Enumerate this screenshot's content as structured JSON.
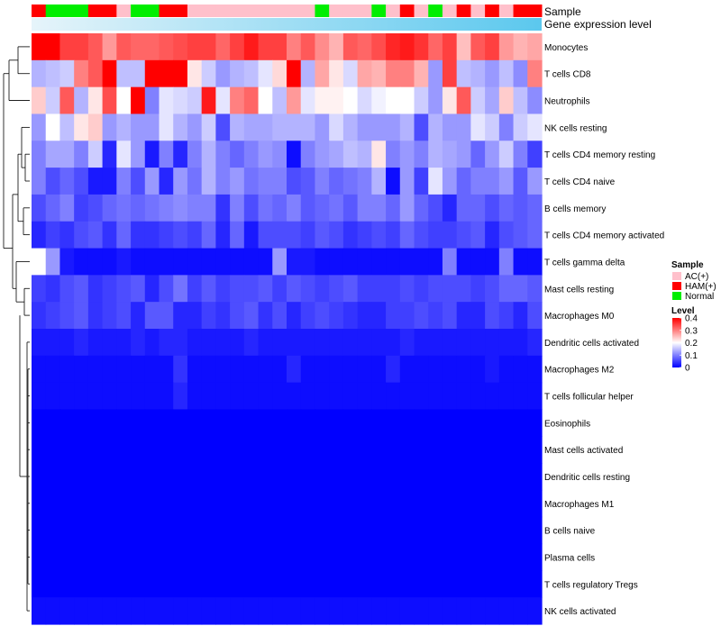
{
  "chart_data": {
    "type": "heatmap",
    "annotation_labels": [
      "Sample",
      "Gene expression level"
    ],
    "sample_groups": [
      "HAM(+)",
      "Normal",
      "Normal",
      "Normal",
      "HAM(+)",
      "HAM(+)",
      "AC(+)",
      "Normal",
      "Normal",
      "HAM(+)",
      "HAM(+)",
      "AC(+)",
      "AC(+)",
      "AC(+)",
      "AC(+)",
      "AC(+)",
      "AC(+)",
      "AC(+)",
      "AC(+)",
      "AC(+)",
      "Normal",
      "AC(+)",
      "AC(+)",
      "AC(+)",
      "Normal",
      "AC(+)",
      "HAM(+)",
      "AC(+)",
      "Normal",
      "AC(+)",
      "HAM(+)",
      "AC(+)",
      "HAM(+)",
      "AC(+)",
      "HAM(+)",
      "HAM(+)"
    ],
    "rows": [
      "Monocytes",
      "T cells CD8",
      "Neutrophils",
      "NK cells resting",
      "T cells CD4 memory resting",
      "T cells CD4 naive",
      "B cells memory",
      "T cells CD4 memory activated",
      "T cells gamma delta",
      "Mast cells resting",
      "Macrophages M0",
      "Dendritic cells activated",
      "Macrophages M2",
      "T cells follicular helper",
      "Eosinophils",
      "Mast cells activated",
      "Dendritic cells resting",
      "Macrophages M1",
      "B cells naive",
      "Plasma cells",
      "T cells regulatory  Tregs",
      "NK cells activated"
    ],
    "value_range": [
      0,
      0.4
    ],
    "values": [
      [
        0.42,
        0.4,
        0.35,
        0.35,
        0.33,
        0.28,
        0.33,
        0.32,
        0.32,
        0.33,
        0.34,
        0.35,
        0.35,
        0.32,
        0.35,
        0.38,
        0.35,
        0.35,
        0.3,
        0.33,
        0.29,
        0.26,
        0.33,
        0.32,
        0.34,
        0.37,
        0.38,
        0.36,
        0.32,
        0.35,
        0.25,
        0.33,
        0.35,
        0.28,
        0.26,
        0.27
      ],
      [
        0.14,
        0.15,
        0.16,
        0.3,
        0.33,
        0.4,
        0.15,
        0.15,
        0.4,
        0.4,
        0.4,
        0.22,
        0.16,
        0.12,
        0.14,
        0.15,
        0.18,
        0.23,
        0.4,
        0.14,
        0.27,
        0.22,
        0.17,
        0.27,
        0.26,
        0.3,
        0.3,
        0.26,
        0.12,
        0.35,
        0.15,
        0.14,
        0.12,
        0.15,
        0.11,
        0.3
      ],
      [
        0.24,
        0.16,
        0.33,
        0.14,
        0.22,
        0.34,
        0.2,
        0.4,
        0.1,
        0.18,
        0.17,
        0.16,
        0.38,
        0.18,
        0.3,
        0.32,
        0.2,
        0.15,
        0.28,
        0.18,
        0.21,
        0.21,
        0.2,
        0.17,
        0.19,
        0.2,
        0.2,
        0.16,
        0.12,
        0.22,
        0.33,
        0.16,
        0.13,
        0.24,
        0.15,
        0.11
      ],
      [
        0.12,
        0.2,
        0.15,
        0.22,
        0.24,
        0.12,
        0.14,
        0.12,
        0.12,
        0.18,
        0.14,
        0.12,
        0.16,
        0.06,
        0.14,
        0.13,
        0.13,
        0.14,
        0.14,
        0.14,
        0.12,
        0.17,
        0.14,
        0.12,
        0.12,
        0.12,
        0.14,
        0.06,
        0.14,
        0.12,
        0.12,
        0.18,
        0.16,
        0.1,
        0.16,
        0.18
      ],
      [
        0.1,
        0.13,
        0.13,
        0.1,
        0.16,
        0.03,
        0.18,
        0.12,
        0.02,
        0.1,
        0.03,
        0.1,
        0.14,
        0.1,
        0.08,
        0.1,
        0.12,
        0.11,
        0.01,
        0.1,
        0.12,
        0.13,
        0.15,
        0.14,
        0.22,
        0.1,
        0.12,
        0.1,
        0.14,
        0.13,
        0.12,
        0.08,
        0.12,
        0.16,
        0.1,
        0.05
      ],
      [
        0.1,
        0.06,
        0.08,
        0.06,
        0.02,
        0.02,
        0.1,
        0.06,
        0.12,
        0.03,
        0.12,
        0.09,
        0.14,
        0.1,
        0.12,
        0.09,
        0.1,
        0.1,
        0.06,
        0.07,
        0.1,
        0.08,
        0.09,
        0.1,
        0.14,
        0.01,
        0.12,
        0.05,
        0.18,
        0.12,
        0.08,
        0.1,
        0.1,
        0.12,
        0.07,
        0.12
      ],
      [
        0.06,
        0.08,
        0.1,
        0.05,
        0.06,
        0.08,
        0.09,
        0.08,
        0.09,
        0.1,
        0.11,
        0.1,
        0.1,
        0.04,
        0.1,
        0.06,
        0.09,
        0.08,
        0.1,
        0.07,
        0.08,
        0.09,
        0.07,
        0.1,
        0.1,
        0.08,
        0.12,
        0.08,
        0.06,
        0.03,
        0.08,
        0.08,
        0.06,
        0.08,
        0.07,
        0.08
      ],
      [
        0.03,
        0.05,
        0.04,
        0.06,
        0.07,
        0.04,
        0.08,
        0.04,
        0.04,
        0.05,
        0.06,
        0.05,
        0.08,
        0.03,
        0.08,
        0.02,
        0.06,
        0.06,
        0.06,
        0.05,
        0.07,
        0.06,
        0.04,
        0.05,
        0.06,
        0.05,
        0.08,
        0.06,
        0.05,
        0.05,
        0.06,
        0.07,
        0.03,
        0.06,
        0.07,
        0.08
      ],
      [
        0.2,
        0.12,
        0.02,
        0.01,
        0.01,
        0.01,
        0.02,
        0.01,
        0.01,
        0.01,
        0.01,
        0.01,
        0.01,
        0.01,
        0.01,
        0.01,
        0.01,
        0.12,
        0.02,
        0.02,
        0.01,
        0.01,
        0.01,
        0.01,
        0.01,
        0.01,
        0.01,
        0.01,
        0.01,
        0.1,
        0.01,
        0.01,
        0.01,
        0.1,
        0.01,
        0.01
      ],
      [
        0.05,
        0.04,
        0.06,
        0.07,
        0.04,
        0.05,
        0.06,
        0.07,
        0.03,
        0.06,
        0.09,
        0.05,
        0.07,
        0.05,
        0.06,
        0.06,
        0.07,
        0.05,
        0.07,
        0.06,
        0.05,
        0.06,
        0.07,
        0.05,
        0.05,
        0.05,
        0.06,
        0.05,
        0.06,
        0.06,
        0.06,
        0.05,
        0.06,
        0.08,
        0.08,
        0.07
      ],
      [
        0.04,
        0.05,
        0.06,
        0.07,
        0.04,
        0.05,
        0.06,
        0.03,
        0.07,
        0.07,
        0.03,
        0.03,
        0.05,
        0.04,
        0.06,
        0.07,
        0.04,
        0.06,
        0.03,
        0.05,
        0.06,
        0.05,
        0.04,
        0.03,
        0.03,
        0.05,
        0.05,
        0.06,
        0.05,
        0.06,
        0.03,
        0.03,
        0.06,
        0.05,
        0.03,
        0.06
      ],
      [
        0.02,
        0.02,
        0.02,
        0.03,
        0.02,
        0.02,
        0.02,
        0.03,
        0.02,
        0.03,
        0.03,
        0.02,
        0.02,
        0.02,
        0.02,
        0.03,
        0.02,
        0.02,
        0.02,
        0.02,
        0.02,
        0.02,
        0.02,
        0.02,
        0.02,
        0.02,
        0.03,
        0.02,
        0.02,
        0.02,
        0.02,
        0.02,
        0.02,
        0.02,
        0.02,
        0.03
      ],
      [
        0.01,
        0.01,
        0.01,
        0.01,
        0.01,
        0.01,
        0.01,
        0.01,
        0.01,
        0.01,
        0.04,
        0.01,
        0.01,
        0.01,
        0.01,
        0.01,
        0.01,
        0.01,
        0.03,
        0.01,
        0.01,
        0.01,
        0.01,
        0.01,
        0.01,
        0.03,
        0.01,
        0.01,
        0.01,
        0.01,
        0.01,
        0.01,
        0.02,
        0.01,
        0.01,
        0.01
      ],
      [
        0.01,
        0.01,
        0.01,
        0.01,
        0.01,
        0.01,
        0.01,
        0.01,
        0.01,
        0.01,
        0.03,
        0.01,
        0.01,
        0.01,
        0.01,
        0.01,
        0.01,
        0.01,
        0.01,
        0.01,
        0.01,
        0.01,
        0.01,
        0.01,
        0.01,
        0.01,
        0.01,
        0.01,
        0.01,
        0.01,
        0.01,
        0.01,
        0.01,
        0.01,
        0.01,
        0.01
      ],
      [
        0.0,
        0.0,
        0.0,
        0.0,
        0.0,
        0.0,
        0.0,
        0.0,
        0.0,
        0.0,
        0.0,
        0.0,
        0.0,
        0.0,
        0.0,
        0.0,
        0.0,
        0.0,
        0.0,
        0.0,
        0.0,
        0.0,
        0.0,
        0.0,
        0.0,
        0.0,
        0.0,
        0.0,
        0.0,
        0.0,
        0.0,
        0.0,
        0.0,
        0.0,
        0.0,
        0.0
      ],
      [
        0.0,
        0.0,
        0.0,
        0.0,
        0.0,
        0.0,
        0.0,
        0.0,
        0.0,
        0.0,
        0.0,
        0.0,
        0.0,
        0.0,
        0.0,
        0.0,
        0.0,
        0.0,
        0.0,
        0.0,
        0.0,
        0.0,
        0.0,
        0.0,
        0.0,
        0.0,
        0.0,
        0.0,
        0.0,
        0.0,
        0.0,
        0.0,
        0.0,
        0.0,
        0.0,
        0.0
      ],
      [
        0.0,
        0.0,
        0.0,
        0.0,
        0.0,
        0.0,
        0.0,
        0.0,
        0.0,
        0.0,
        0.0,
        0.0,
        0.0,
        0.0,
        0.0,
        0.0,
        0.0,
        0.0,
        0.0,
        0.0,
        0.0,
        0.0,
        0.0,
        0.0,
        0.0,
        0.0,
        0.0,
        0.0,
        0.0,
        0.0,
        0.0,
        0.0,
        0.0,
        0.0,
        0.0,
        0.0
      ],
      [
        0.0,
        0.0,
        0.0,
        0.0,
        0.0,
        0.0,
        0.0,
        0.0,
        0.0,
        0.0,
        0.0,
        0.0,
        0.0,
        0.0,
        0.0,
        0.0,
        0.0,
        0.0,
        0.0,
        0.0,
        0.0,
        0.0,
        0.0,
        0.0,
        0.0,
        0.0,
        0.0,
        0.0,
        0.0,
        0.0,
        0.0,
        0.0,
        0.0,
        0.0,
        0.0,
        0.0
      ],
      [
        0.0,
        0.0,
        0.0,
        0.0,
        0.0,
        0.0,
        0.0,
        0.0,
        0.0,
        0.0,
        0.0,
        0.0,
        0.0,
        0.0,
        0.0,
        0.0,
        0.0,
        0.0,
        0.0,
        0.0,
        0.0,
        0.0,
        0.0,
        0.0,
        0.0,
        0.0,
        0.0,
        0.0,
        0.0,
        0.0,
        0.0,
        0.0,
        0.0,
        0.0,
        0.0,
        0.0
      ],
      [
        0.0,
        0.0,
        0.0,
        0.0,
        0.0,
        0.0,
        0.0,
        0.0,
        0.0,
        0.0,
        0.0,
        0.0,
        0.0,
        0.0,
        0.0,
        0.0,
        0.0,
        0.0,
        0.0,
        0.0,
        0.0,
        0.0,
        0.0,
        0.0,
        0.0,
        0.0,
        0.0,
        0.0,
        0.0,
        0.0,
        0.0,
        0.0,
        0.0,
        0.0,
        0.0,
        0.0
      ],
      [
        0.0,
        0.0,
        0.0,
        0.0,
        0.0,
        0.0,
        0.0,
        0.0,
        0.0,
        0.0,
        0.0,
        0.0,
        0.0,
        0.0,
        0.0,
        0.0,
        0.0,
        0.0,
        0.0,
        0.0,
        0.0,
        0.0,
        0.0,
        0.0,
        0.0,
        0.0,
        0.0,
        0.0,
        0.0,
        0.0,
        0.0,
        0.0,
        0.0,
        0.0,
        0.0,
        0.0
      ],
      [
        0.01,
        0.01,
        0.01,
        0.01,
        0.01,
        0.01,
        0.01,
        0.01,
        0.01,
        0.01,
        0.01,
        0.01,
        0.01,
        0.01,
        0.01,
        0.01,
        0.01,
        0.01,
        0.01,
        0.01,
        0.01,
        0.01,
        0.01,
        0.01,
        0.01,
        0.01,
        0.01,
        0.01,
        0.01,
        0.01,
        0.01,
        0.01,
        0.01,
        0.01,
        0.01,
        0.01
      ]
    ],
    "legend_sample": {
      "title": "Sample",
      "items": [
        {
          "label": "AC(+)",
          "color": "#FFC0CB"
        },
        {
          "label": "HAM(+)",
          "color": "#FF0000"
        },
        {
          "label": "Normal",
          "color": "#00EE00"
        }
      ]
    },
    "legend_level": {
      "title": "Level",
      "ticks": [
        "0.4",
        "0.3",
        "0.2",
        "0.1",
        "0"
      ],
      "tick_values": [
        0.4,
        0.3,
        0.2,
        0.1,
        0
      ]
    },
    "gene_expression_gradient": [
      "#E6F4FA",
      "#5BC8EE"
    ],
    "colors": {
      "low": "#0000FF",
      "mid": "#FFFFFF",
      "high": "#FF0000"
    }
  }
}
